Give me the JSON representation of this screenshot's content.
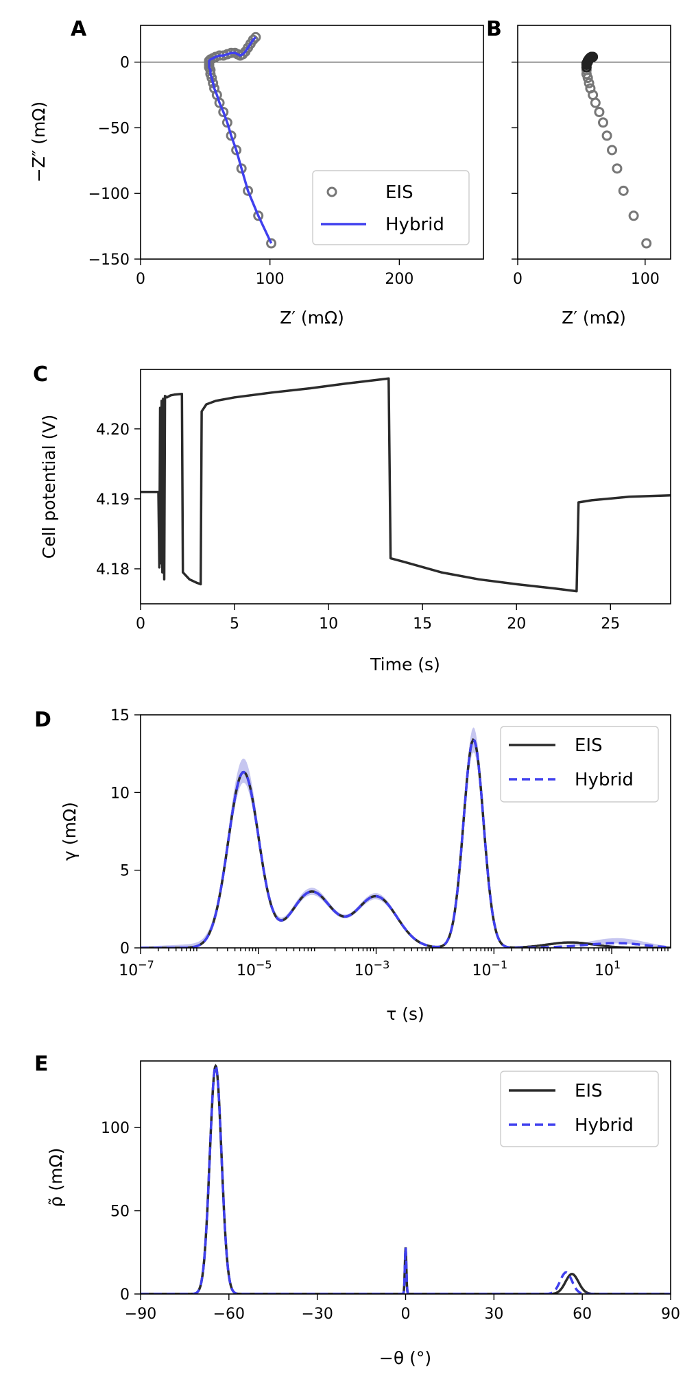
{
  "colors": {
    "eis": "#2b2b2b",
    "hybrid": "#4040ee",
    "hybrid_band": "#8080dd",
    "eis_marker": "#777777",
    "eis_marker_dark": "#222222"
  },
  "chart_data": [
    {
      "panel": "A",
      "type": "scatter",
      "xlabel": "Z′ (mΩ)",
      "ylabel": "−Z″ (mΩ)",
      "xlim": [
        0,
        265
      ],
      "ylim": [
        -150,
        28
      ],
      "xticks": [
        0,
        100,
        200
      ],
      "yticks": [
        0,
        -50,
        -100,
        -150
      ],
      "legend_position": "lower-right",
      "series": [
        {
          "name": "EIS",
          "kind": "marker",
          "points": [
            [
              101,
              -138
            ],
            [
              91,
              -117
            ],
            [
              83,
              -98
            ],
            [
              78,
              -81
            ],
            [
              74,
              -67
            ],
            [
              70,
              -56
            ],
            [
              67,
              -46
            ],
            [
              64,
              -38
            ],
            [
              61,
              -31
            ],
            [
              59,
              -25
            ],
            [
              57,
              -20
            ],
            [
              56,
              -16
            ],
            [
              55,
              -12
            ],
            [
              54,
              -9
            ],
            [
              54,
              -6
            ],
            [
              53,
              -4
            ],
            [
              53,
              -2
            ],
            [
              53,
              0
            ],
            [
              53,
              1
            ],
            [
              54,
              2
            ],
            [
              56,
              3
            ],
            [
              58,
              4
            ],
            [
              61,
              5
            ],
            [
              64,
              5
            ],
            [
              67,
              6
            ],
            [
              70,
              7
            ],
            [
              73,
              7
            ],
            [
              75,
              6
            ],
            [
              77,
              5
            ],
            [
              79,
              6
            ],
            [
              81,
              8
            ],
            [
              83,
              11
            ],
            [
              85,
              14
            ],
            [
              87,
              17
            ],
            [
              89,
              19
            ]
          ]
        },
        {
          "name": "Hybrid",
          "kind": "line",
          "points": [
            [
              101,
              -138
            ],
            [
              91,
              -117
            ],
            [
              83,
              -98
            ],
            [
              78,
              -81
            ],
            [
              74,
              -67
            ],
            [
              70,
              -56
            ],
            [
              67,
              -46
            ],
            [
              64,
              -38
            ],
            [
              61,
              -31
            ],
            [
              59,
              -25
            ],
            [
              57,
              -20
            ],
            [
              56,
              -16
            ],
            [
              55,
              -12
            ],
            [
              54,
              -9
            ],
            [
              54,
              -6
            ],
            [
              53,
              -4
            ],
            [
              53,
              -2
            ],
            [
              53,
              0
            ],
            [
              53,
              1
            ],
            [
              54,
              2
            ],
            [
              56,
              3
            ],
            [
              58,
              4
            ],
            [
              61,
              5
            ],
            [
              64,
              5
            ],
            [
              67,
              6
            ],
            [
              70,
              7
            ],
            [
              73,
              7
            ],
            [
              75,
              6
            ],
            [
              77,
              5
            ],
            [
              79,
              6
            ],
            [
              81,
              8
            ],
            [
              83,
              11
            ],
            [
              85,
              14
            ],
            [
              87,
              17
            ],
            [
              89,
              19
            ]
          ]
        }
      ]
    },
    {
      "panel": "B",
      "type": "scatter",
      "xlabel": "Z′ (mΩ)",
      "ylabel": "",
      "xlim": [
        0,
        120
      ],
      "ylim": [
        -150,
        28
      ],
      "xticks": [
        0,
        100
      ],
      "yticks": [
        0,
        -50,
        -100,
        -150
      ],
      "series": [
        {
          "name": "EIS",
          "kind": "marker",
          "points": [
            [
              101,
              -138
            ],
            [
              91,
              -117
            ],
            [
              83,
              -98
            ],
            [
              78,
              -81
            ],
            [
              74,
              -67
            ],
            [
              70,
              -56
            ],
            [
              67,
              -46
            ],
            [
              64,
              -38
            ],
            [
              61,
              -31
            ],
            [
              59,
              -25
            ],
            [
              57,
              -20
            ],
            [
              56,
              -16
            ],
            [
              55,
              -12
            ],
            [
              54,
              -9
            ],
            [
              54,
              -6
            ],
            [
              54,
              -4
            ],
            [
              54,
              -2
            ],
            [
              54,
              -1
            ],
            [
              55,
              0
            ],
            [
              55,
              1
            ],
            [
              56,
              2
            ],
            [
              56,
              2.5
            ],
            [
              57,
              3
            ],
            [
              57,
              3.5
            ],
            [
              58,
              4
            ],
            [
              58,
              4
            ],
            [
              59,
              4
            ]
          ]
        }
      ]
    },
    {
      "panel": "C",
      "type": "line",
      "xlabel": "Time (s)",
      "ylabel": "Cell potential (V)",
      "xlim": [
        0,
        28.2
      ],
      "ylim": [
        4.175,
        4.2085
      ],
      "xticks": [
        0,
        5,
        10,
        15,
        20,
        25
      ],
      "ytick_labels": [
        "4.18",
        "4.19",
        "4.20"
      ],
      "yticks": [
        4.18,
        4.19,
        4.2
      ],
      "series": [
        {
          "name": "Cell potential",
          "points": [
            [
              0,
              4.191
            ],
            [
              0.95,
              4.191
            ],
            [
              1.0,
              4.1802
            ],
            [
              1.04,
              4.203
            ],
            [
              1.08,
              4.1808
            ],
            [
              1.12,
              4.204
            ],
            [
              1.16,
              4.1795
            ],
            [
              1.2,
              4.2043
            ],
            [
              1.26,
              4.1785
            ],
            [
              1.3,
              4.2047
            ],
            [
              1.4,
              4.2045
            ],
            [
              1.6,
              4.2048
            ],
            [
              1.8,
              4.2049
            ],
            [
              2.2,
              4.205
            ],
            [
              2.25,
              4.1795
            ],
            [
              2.6,
              4.1785
            ],
            [
              3.0,
              4.178
            ],
            [
              3.2,
              4.1778
            ],
            [
              3.25,
              4.2025
            ],
            [
              3.5,
              4.2035
            ],
            [
              4,
              4.204
            ],
            [
              5,
              4.2045
            ],
            [
              7,
              4.2052
            ],
            [
              9,
              4.2058
            ],
            [
              11,
              4.2065
            ],
            [
              13.2,
              4.2072
            ],
            [
              13.3,
              4.1815
            ],
            [
              14,
              4.181
            ],
            [
              16,
              4.1795
            ],
            [
              18,
              4.1785
            ],
            [
              20,
              4.1778
            ],
            [
              22,
              4.1772
            ],
            [
              23.2,
              4.1768
            ],
            [
              23.3,
              4.1895
            ],
            [
              24,
              4.1898
            ],
            [
              26,
              4.1903
            ],
            [
              28.2,
              4.1905
            ]
          ]
        }
      ]
    },
    {
      "panel": "D",
      "type": "line",
      "xlabel": "τ (s)",
      "ylabel": "γ (mΩ)",
      "x_scale": "log",
      "xlim": [
        1e-07,
        100
      ],
      "ylim": [
        0,
        15
      ],
      "xtick_labels": [
        "10−7",
        "10−5",
        "10−3",
        "10−1",
        "101"
      ],
      "yticks": [
        0,
        5,
        10,
        15
      ],
      "legend_position": "upper-right",
      "series": [
        {
          "name": "EIS",
          "style": "solid"
        },
        {
          "name": "Hybrid",
          "style": "dashed"
        }
      ],
      "peaks": [
        {
          "tau": 5.6e-06,
          "gamma": 11.3,
          "log_width": 0.26
        },
        {
          "tau": 8e-05,
          "gamma": 3.6,
          "log_width": 0.35
        },
        {
          "tau": 0.001,
          "gamma": 3.3,
          "log_width": 0.35
        },
        {
          "tau": 0.045,
          "gamma": 13.4,
          "log_width": 0.17
        },
        {
          "tau": 2.0,
          "gamma": 0.35,
          "log_width": 0.4
        }
      ]
    },
    {
      "panel": "E",
      "type": "line",
      "xlabel": "−θ (°)",
      "ylabel": "ρ̃ (mΩ)",
      "xlim": [
        -90,
        90
      ],
      "ylim": [
        0,
        140
      ],
      "xticks": [
        -90,
        -60,
        -30,
        0,
        30,
        60,
        90
      ],
      "xtick_labels": [
        "−90",
        "−60",
        "−30",
        "0",
        "30",
        "60",
        "90"
      ],
      "yticks": [
        0,
        50,
        100
      ],
      "legend_position": "upper-right",
      "series": [
        {
          "name": "EIS",
          "style": "solid",
          "peaks": [
            [
              -64.5,
              137,
              2.0
            ],
            [
              0,
              28,
              0.25
            ],
            [
              56.5,
              12,
              2.2
            ]
          ]
        },
        {
          "name": "Hybrid",
          "style": "dashed",
          "peaks": [
            [
              -64.5,
              137,
              2.0
            ],
            [
              0,
              28,
              0.25
            ],
            [
              54.5,
              13,
              2.0
            ]
          ]
        }
      ]
    }
  ]
}
